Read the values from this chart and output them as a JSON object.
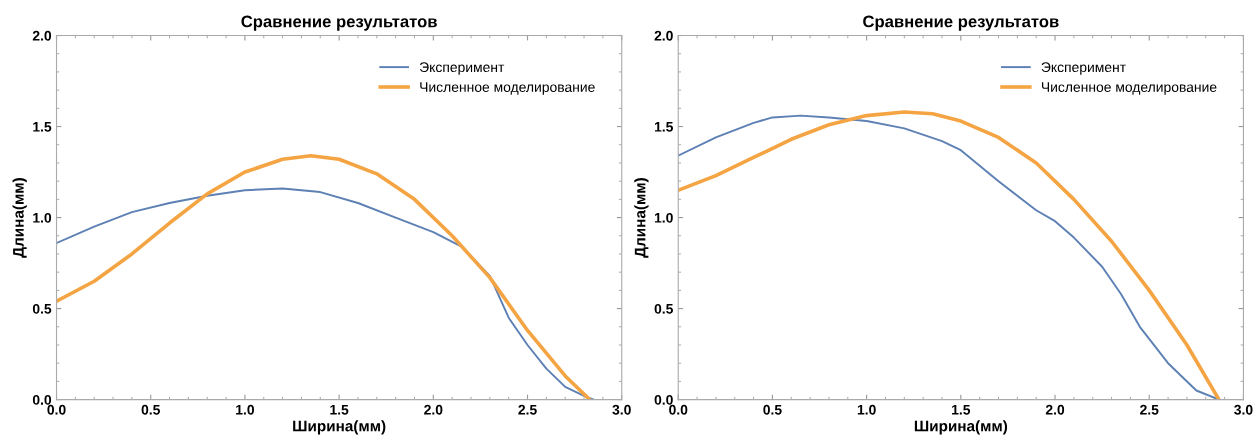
{
  "chart_data": [
    {
      "type": "line",
      "title": "Сравнение результатов",
      "xlabel": "Ширина(мм)",
      "ylabel": "Длина(мм)",
      "legend": "top right",
      "grid": false,
      "xlim": [
        0,
        3
      ],
      "ylim": [
        0,
        2
      ],
      "xticks": [
        {
          "value": 0,
          "label": "0.0"
        },
        {
          "value": 0.5,
          "label": "0.5"
        },
        {
          "value": 1,
          "label": "1.0"
        },
        {
          "value": 1.5,
          "label": "1.5"
        },
        {
          "value": 2,
          "label": "2.0"
        },
        {
          "value": 2.5,
          "label": "2.5"
        },
        {
          "value": 3,
          "label": "3.0"
        }
      ],
      "yticks": [
        {
          "value": 0,
          "label": "0.0"
        },
        {
          "value": 0.5,
          "label": "0.5"
        },
        {
          "value": 1,
          "label": "1.0"
        },
        {
          "value": 1.5,
          "label": "1.5"
        },
        {
          "value": 2,
          "label": "2.0"
        }
      ],
      "series": [
        {
          "name": "Эксперимент",
          "color": "#5e81b5",
          "x": [
            0,
            0.2,
            0.4,
            0.6,
            0.8,
            1.0,
            1.2,
            1.4,
            1.6,
            1.8,
            2.0,
            2.15,
            2.3,
            2.4,
            2.5,
            2.6,
            2.7,
            2.8,
            2.85
          ],
          "values": [
            0.86,
            0.95,
            1.03,
            1.08,
            1.12,
            1.15,
            1.16,
            1.14,
            1.08,
            1.0,
            0.92,
            0.84,
            0.68,
            0.45,
            0.3,
            0.17,
            0.07,
            0.02,
            0
          ]
        },
        {
          "name": "Численное моделирование",
          "color": "#f5a443",
          "x": [
            0,
            0.2,
            0.4,
            0.6,
            0.8,
            1.0,
            1.2,
            1.35,
            1.5,
            1.7,
            1.9,
            2.1,
            2.3,
            2.5,
            2.7,
            2.83
          ],
          "values": [
            0.54,
            0.65,
            0.8,
            0.97,
            1.13,
            1.25,
            1.32,
            1.34,
            1.32,
            1.24,
            1.1,
            0.9,
            0.67,
            0.38,
            0.13,
            0
          ]
        }
      ]
    },
    {
      "type": "line",
      "title": "Сравнение результатов",
      "xlabel": "Ширина(мм)",
      "ylabel": "Длина(мм)",
      "legend": "top right",
      "grid": false,
      "xlim": [
        0,
        3
      ],
      "ylim": [
        0,
        2
      ],
      "xticks": [
        {
          "value": 0,
          "label": "0.0"
        },
        {
          "value": 0.5,
          "label": "0.5"
        },
        {
          "value": 1,
          "label": "1.0"
        },
        {
          "value": 1.5,
          "label": "1.5"
        },
        {
          "value": 2,
          "label": "2.0"
        },
        {
          "value": 2.5,
          "label": "2.5"
        },
        {
          "value": 3,
          "label": "3.0"
        }
      ],
      "yticks": [
        {
          "value": 0,
          "label": "0.0"
        },
        {
          "value": 0.5,
          "label": "0.5"
        },
        {
          "value": 1,
          "label": "1.0"
        },
        {
          "value": 1.5,
          "label": "1.5"
        },
        {
          "value": 2,
          "label": "2.0"
        }
      ],
      "series": [
        {
          "name": "Эксперимент",
          "color": "#5e81b5",
          "x": [
            0,
            0.2,
            0.4,
            0.5,
            0.65,
            0.8,
            1.0,
            1.2,
            1.4,
            1.5,
            1.7,
            1.9,
            2.0,
            2.1,
            2.25,
            2.35,
            2.45,
            2.6,
            2.75,
            2.87
          ],
          "values": [
            1.34,
            1.44,
            1.52,
            1.55,
            1.56,
            1.55,
            1.53,
            1.49,
            1.42,
            1.37,
            1.2,
            1.04,
            0.98,
            0.89,
            0.73,
            0.58,
            0.4,
            0.2,
            0.05,
            0
          ]
        },
        {
          "name": "Численное моделирование",
          "color": "#f5a443",
          "x": [
            0,
            0.2,
            0.4,
            0.6,
            0.8,
            1.0,
            1.2,
            1.35,
            1.5,
            1.7,
            1.9,
            2.1,
            2.3,
            2.5,
            2.7,
            2.87
          ],
          "values": [
            1.15,
            1.23,
            1.33,
            1.43,
            1.51,
            1.56,
            1.58,
            1.57,
            1.53,
            1.44,
            1.3,
            1.1,
            0.87,
            0.6,
            0.3,
            0
          ]
        }
      ]
    }
  ]
}
